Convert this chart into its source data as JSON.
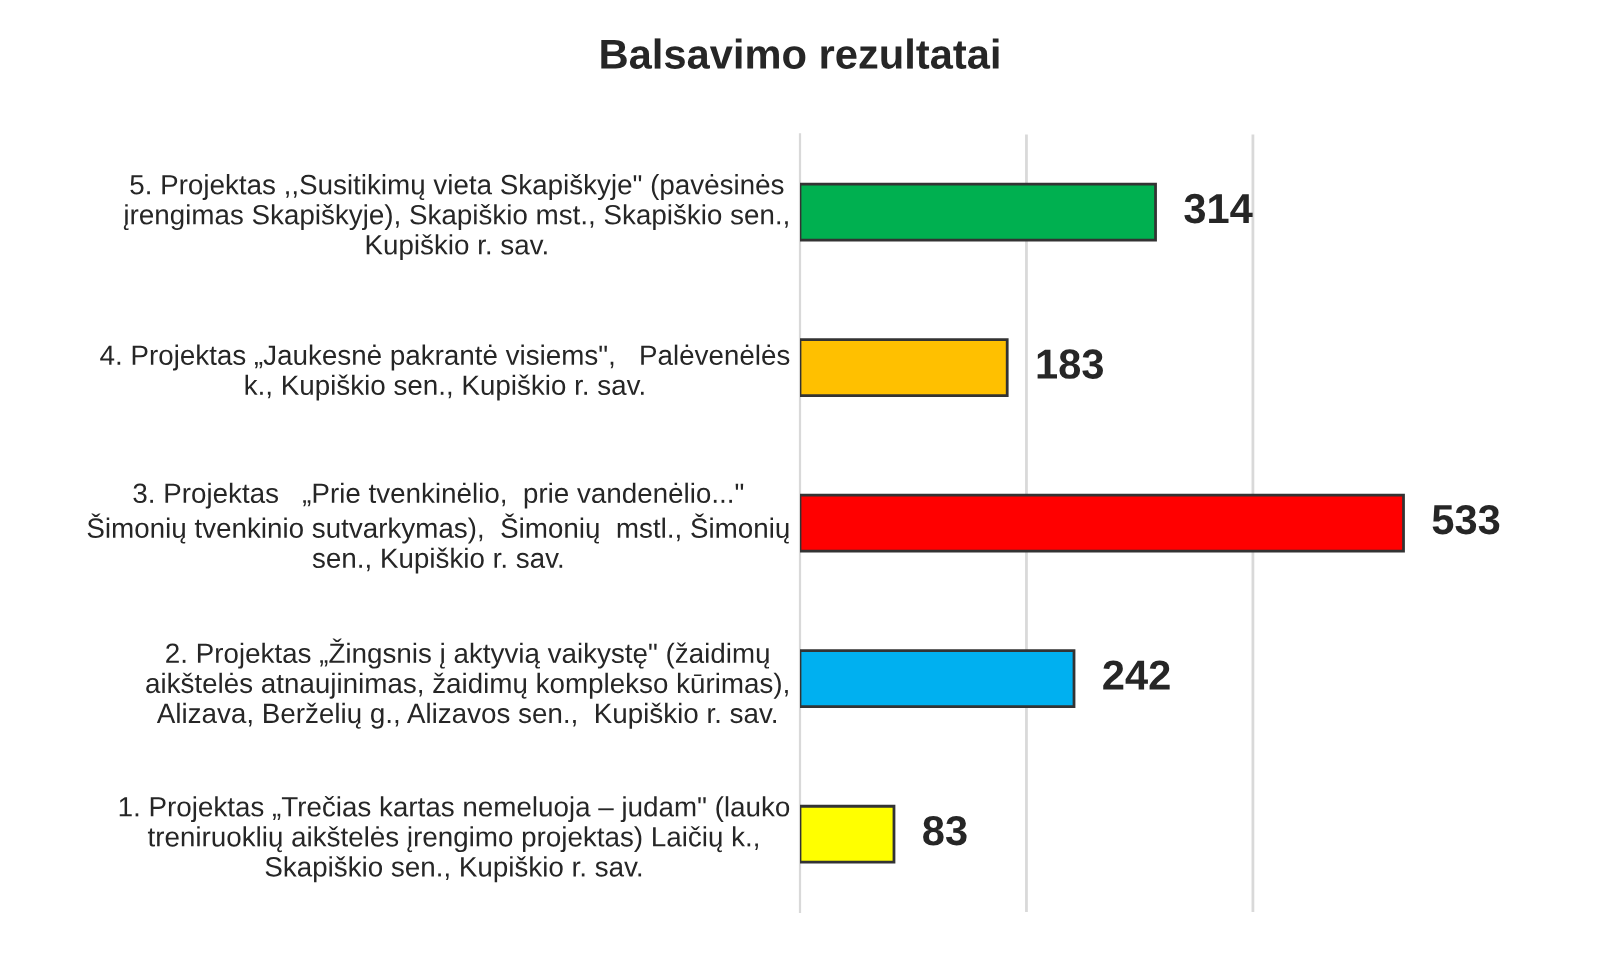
{
  "chart_data": {
    "type": "bar",
    "orientation": "horizontal",
    "title": "Balsavimo rezultatai",
    "categories": [
      "5. Projektas ,,Susitikimų vieta Skapiškyje\" (pavėsinės\nįrengimas Skapiškyje), Skapiškio mst., Skapiškio sen.,\nKupiškio r. sav.",
      "4. Projektas „Jaukesnė pakrantė visiems\",   Palėvenėlės\nk., Kupiškio sen., Kupiškio r. sav.",
      "3. Projektas   „Prie tvenkinėlio,  prie vandenėlio...\"\nŠimonių tvenkinio sutvarkymas),  Šimonių  mstl., Šimonių\nsen., Kupiškio r. sav.",
      "2. Projektas „Žingsnis į aktyvią vaikystę\" (žaidimų\naikštelės atnaujinimas, žaidimų komplekso kūrimas),\nAlizava, Berželių g., Alizavos sen.,  Kupiškio r. sav.",
      "1. Projektas „Trečias kartas nemeluoja – judam\" (lauko\ntreniruoklių aikštelės įrengimo projektas) Laičių k.,\nSkapiškio sen., Kupiškio r. sav."
    ],
    "values": [
      314,
      183,
      533,
      242,
      83
    ],
    "colors": [
      "#00b050",
      "#ffc000",
      "#ff0000",
      "#00b0f0",
      "#ffff00"
    ],
    "data_labels": true,
    "ref_lines": [
      {
        "axis": "x",
        "value": 200,
        "color": "#d9d9d9"
      },
      {
        "axis": "x",
        "value": 400,
        "color": "#d9d9d9"
      }
    ],
    "tick_labels": "y"
  }
}
